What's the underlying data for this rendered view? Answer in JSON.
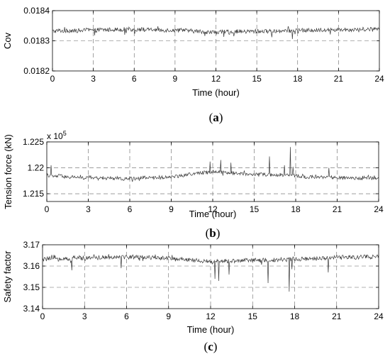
{
  "chart_data": [
    {
      "type": "line",
      "panel_label": "a",
      "xlabel": "Time (hour)",
      "ylabel": "Cov",
      "xlim": [
        0,
        24
      ],
      "ylim": [
        0.0182,
        0.0184
      ],
      "x_ticks": [
        "0",
        "3",
        "6",
        "9",
        "12",
        "15",
        "18",
        "21",
        "24"
      ],
      "y_ticks": [
        "0.0182",
        "0.0183",
        "0.0184"
      ],
      "y_tick_values": [
        0.0182,
        0.0183,
        0.0184
      ],
      "grid": true,
      "series": [
        {
          "x": [
            0,
            0.5,
            1,
            1.5,
            2,
            2.5,
            3,
            3.5,
            4,
            4.5,
            5,
            5.5,
            6,
            6.5,
            7,
            7.5,
            8,
            8.5,
            9,
            9.5,
            10,
            10.5,
            11,
            11.5,
            12,
            12.5,
            13,
            13.5,
            14,
            14.5,
            15,
            15.5,
            16,
            16.5,
            17,
            17.5,
            18,
            18.5,
            19,
            19.5,
            20,
            20.5,
            21,
            21.5,
            22,
            22.5,
            23,
            23.5,
            24
          ],
          "values": [
            0.018331,
            0.018334,
            0.018332,
            0.018335,
            0.018333,
            0.018336,
            0.018334,
            0.018337,
            0.018336,
            0.018338,
            0.018337,
            0.018339,
            0.018337,
            0.018338,
            0.018336,
            0.018337,
            0.018335,
            0.018336,
            0.018334,
            0.018335,
            0.018333,
            0.018332,
            0.01833,
            0.018329,
            0.018328,
            0.018329,
            0.01833,
            0.018331,
            0.01833,
            0.018331,
            0.018332,
            0.018331,
            0.018333,
            0.018332,
            0.018334,
            0.018333,
            0.018335,
            0.018334,
            0.018336,
            0.018335,
            0.018337,
            0.018336,
            0.018337,
            0.018338,
            0.018337,
            0.018338,
            0.018339,
            0.018338,
            0.018339
          ],
          "spikes": [
            [
              3.1,
              0.018318
            ],
            [
              5.3,
              0.01832
            ],
            [
              11.2,
              0.018316
            ],
            [
              12.6,
              0.018313
            ],
            [
              13.3,
              0.018315
            ],
            [
              16.1,
              0.018312
            ],
            [
              17.6,
              0.018306
            ],
            [
              17.8,
              0.018322
            ],
            [
              20.4,
              0.018321
            ]
          ]
        }
      ]
    },
    {
      "type": "line",
      "panel_label": "b",
      "xlabel": "Time (hour)",
      "ylabel": "Tension force (kN)",
      "scale_note": "x 10",
      "scale_exp": "5",
      "xlim": [
        0,
        24
      ],
      "ylim": [
        1.2135,
        1.225
      ],
      "x_ticks": [
        "0",
        "3",
        "6",
        "9",
        "12",
        "15",
        "18",
        "21",
        "24"
      ],
      "y_ticks": [
        "1.215",
        "1.22",
        "1.225"
      ],
      "y_tick_values": [
        1.215,
        1.22,
        1.225
      ],
      "grid": true,
      "series": [
        {
          "x": [
            0,
            0.5,
            1,
            1.5,
            2,
            2.5,
            3,
            3.5,
            4,
            4.5,
            5,
            5.5,
            6,
            6.5,
            7,
            7.5,
            8,
            8.5,
            9,
            9.5,
            10,
            10.5,
            11,
            11.5,
            12,
            12.5,
            13,
            13.5,
            14,
            14.5,
            15,
            15.5,
            16,
            16.5,
            17,
            17.5,
            18,
            18.5,
            19,
            19.5,
            20,
            20.5,
            21,
            21.5,
            22,
            22.5,
            23,
            23.5,
            24
          ],
          "values": [
            1.2186,
            1.2183,
            1.2185,
            1.2181,
            1.2183,
            1.218,
            1.2182,
            1.218,
            1.2181,
            1.2179,
            1.218,
            1.2178,
            1.218,
            1.2179,
            1.2181,
            1.218,
            1.2182,
            1.2181,
            1.2183,
            1.2184,
            1.2186,
            1.2188,
            1.219,
            1.2191,
            1.2193,
            1.2192,
            1.2191,
            1.219,
            1.2189,
            1.2188,
            1.2187,
            1.2188,
            1.2186,
            1.2187,
            1.2185,
            1.2186,
            1.2184,
            1.2183,
            1.2182,
            1.2183,
            1.2181,
            1.2182,
            1.218,
            1.2181,
            1.2179,
            1.218,
            1.2181,
            1.218,
            1.2181
          ],
          "spikes": [
            [
              0.3,
              1.2205
            ],
            [
              11.8,
              1.2212
            ],
            [
              12.6,
              1.2215
            ],
            [
              13.3,
              1.221
            ],
            [
              16.1,
              1.2222
            ],
            [
              17.2,
              1.2205
            ],
            [
              17.6,
              1.224
            ],
            [
              17.8,
              1.2202
            ],
            [
              20.4,
              1.22
            ]
          ]
        }
      ]
    },
    {
      "type": "line",
      "panel_label": "c",
      "xlabel": "Time (hour)",
      "ylabel": "Safety factor",
      "xlim": [
        0,
        24
      ],
      "ylim": [
        3.14,
        3.17
      ],
      "x_ticks": [
        "0",
        "3",
        "6",
        "9",
        "12",
        "15",
        "18",
        "21",
        "24"
      ],
      "y_ticks": [
        "3.14",
        "3.15",
        "3.16",
        "3.17"
      ],
      "y_tick_values": [
        3.14,
        3.15,
        3.16,
        3.17
      ],
      "grid": true,
      "series": [
        {
          "x": [
            0,
            0.5,
            1,
            1.5,
            2,
            2.5,
            3,
            3.5,
            4,
            4.5,
            5,
            5.5,
            6,
            6.5,
            7,
            7.5,
            8,
            8.5,
            9,
            9.5,
            10,
            10.5,
            11,
            11.5,
            12,
            12.5,
            13,
            13.5,
            14,
            14.5,
            15,
            15.5,
            16,
            16.5,
            17,
            17.5,
            18,
            18.5,
            19,
            19.5,
            20,
            20.5,
            21,
            21.5,
            22,
            22.5,
            23,
            23.5,
            24
          ],
          "values": [
            3.163,
            3.1635,
            3.1632,
            3.1638,
            3.1634,
            3.164,
            3.1636,
            3.1641,
            3.1639,
            3.1643,
            3.1641,
            3.1645,
            3.1642,
            3.1644,
            3.164,
            3.1642,
            3.1638,
            3.164,
            3.1636,
            3.1637,
            3.1633,
            3.163,
            3.1626,
            3.1623,
            3.162,
            3.1621,
            3.1623,
            3.1625,
            3.1624,
            3.1626,
            3.1627,
            3.1626,
            3.1629,
            3.1628,
            3.1632,
            3.1631,
            3.1634,
            3.1633,
            3.1636,
            3.1635,
            3.1639,
            3.1637,
            3.164,
            3.1641,
            3.164,
            3.1642,
            3.1643,
            3.1642,
            3.1644
          ],
          "spikes": [
            [
              2.1,
              3.158
            ],
            [
              5.6,
              3.159
            ],
            [
              12.3,
              3.154
            ],
            [
              12.6,
              3.153
            ],
            [
              13.3,
              3.156
            ],
            [
              16.1,
              3.152
            ],
            [
              17.6,
              3.148
            ],
            [
              17.8,
              3.1585
            ],
            [
              20.4,
              3.157
            ]
          ]
        }
      ]
    }
  ]
}
